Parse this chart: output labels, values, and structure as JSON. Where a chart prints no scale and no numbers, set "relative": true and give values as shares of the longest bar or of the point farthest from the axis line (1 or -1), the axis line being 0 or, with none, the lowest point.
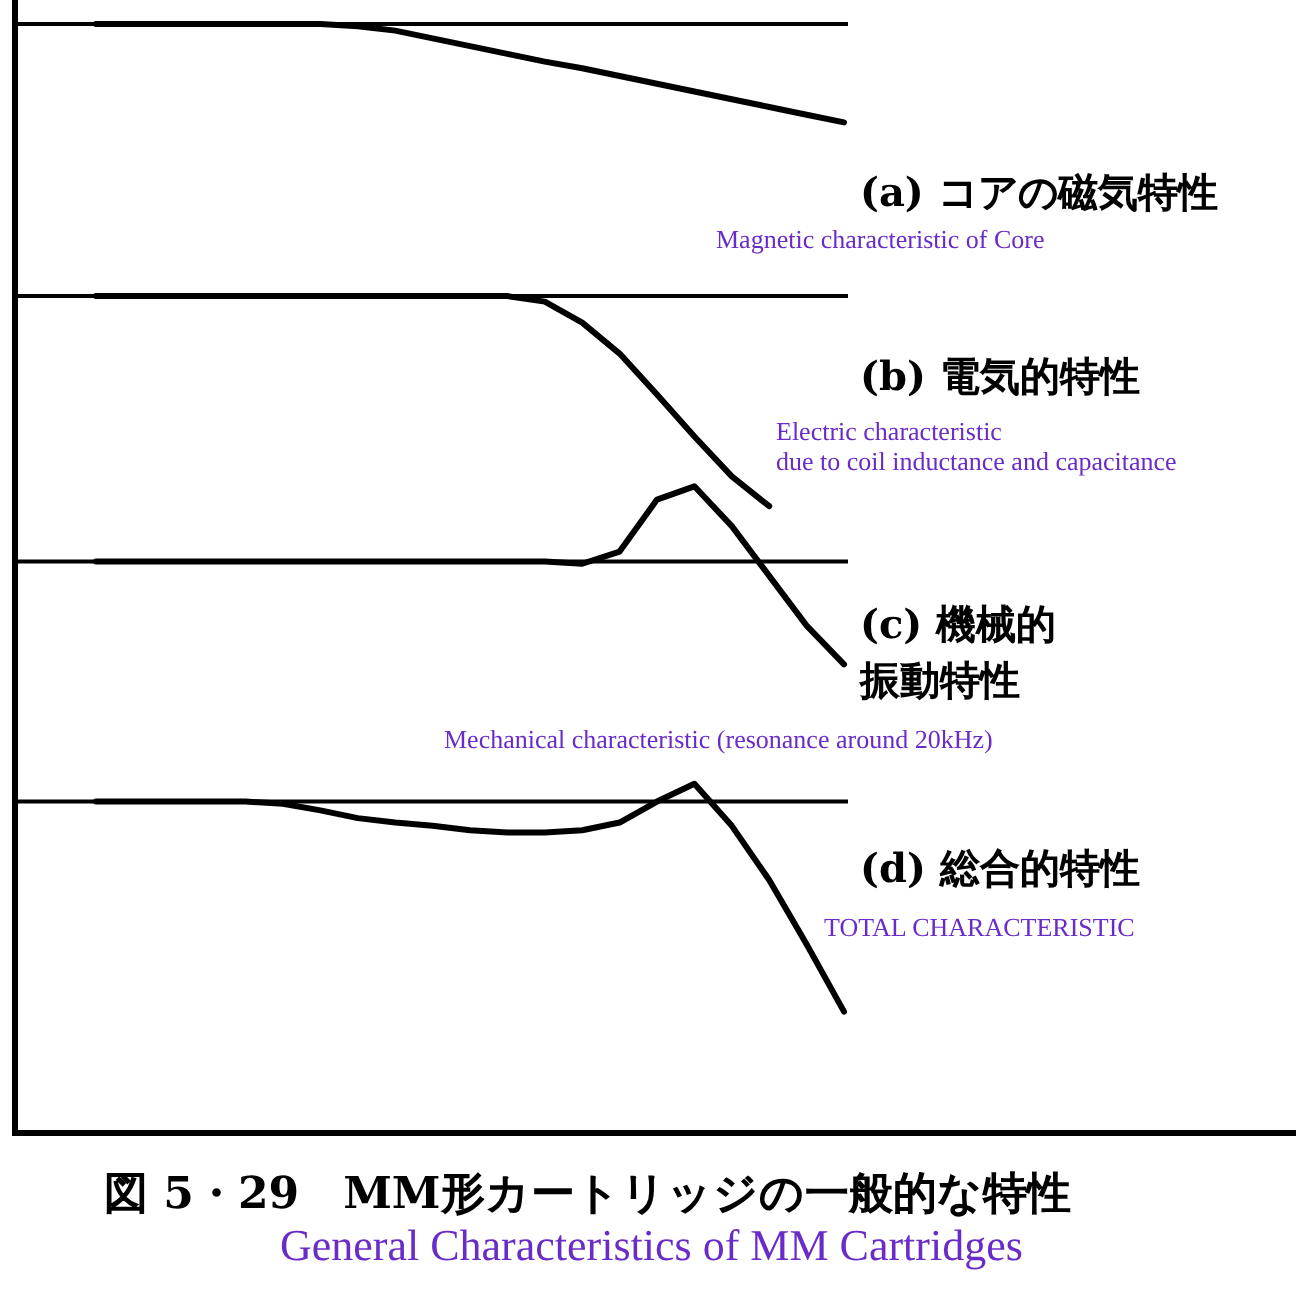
{
  "chart_data": {
    "type": "line",
    "title": "図 5・29　MM形カートリッジの一般的な特性",
    "subtitle": "General Characteristics of MM Cartridges",
    "relative": true,
    "annotations": [
      "Magnetic characteristic of Core",
      "Electric characteristic\ndue to coil inductance and capacitance",
      "Mechanical characteristic (resonance around 20kHz)",
      "TOTAL CHARACTERISTIC"
    ],
    "categories": [
      null,
      null,
      null,
      null,
      null,
      null,
      null,
      null,
      null,
      null,
      null,
      null,
      null,
      null,
      null,
      null,
      null,
      null,
      null,
      null,
      null
    ],
    "series": [
      {
        "name": "(a) コアの磁気特性",
        "color": "#000000",
        "values": [
          1,
          1,
          1,
          1,
          1,
          1,
          1,
          0.998,
          0.994,
          0.987,
          0.98,
          0.973,
          0.966,
          0.96,
          0.953,
          0.946,
          0.939,
          0.932,
          0.925,
          0.918,
          0.911
        ]
      },
      {
        "name": "(b) 電気的特性",
        "color": "#000000",
        "values": [
          0.754,
          0.754,
          0.754,
          0.754,
          0.754,
          0.754,
          0.754,
          0.754,
          0.754,
          0.754,
          0.754,
          0.754,
          0.749,
          0.73,
          0.702,
          0.665,
          0.627,
          0.591,
          0.564,
          null,
          null
        ]
      },
      {
        "name": "(c) 機械的振動特性",
        "color": "#000000",
        "values": [
          0.514,
          0.514,
          0.514,
          0.514,
          0.514,
          0.514,
          0.514,
          0.514,
          0.514,
          0.514,
          0.514,
          0.514,
          0.514,
          0.512,
          0.523,
          0.57,
          0.582,
          0.546,
          0.501,
          0.456,
          0.421
        ]
      },
      {
        "name": "(d) 総合的特性",
        "color": "#000000",
        "values": [
          0.297,
          0.297,
          0.297,
          0.297,
          0.297,
          0.295,
          0.289,
          0.282,
          0.278,
          0.275,
          0.271,
          0.269,
          0.269,
          0.271,
          0.278,
          0.297,
          0.313,
          0.275,
          0.226,
          0.168,
          0.107
        ]
      }
    ],
    "ref_lines": [
      {
        "axis": "y",
        "value": 1,
        "color": "#000000"
      },
      {
        "axis": "y",
        "value": 0.754,
        "color": "#000000"
      },
      {
        "axis": "y",
        "value": 0.514,
        "color": "#000000"
      },
      {
        "axis": "y",
        "value": 0.297,
        "color": "#000000"
      }
    ],
    "tick_labels": false,
    "marker": "none",
    "line_style": "solid"
  }
}
